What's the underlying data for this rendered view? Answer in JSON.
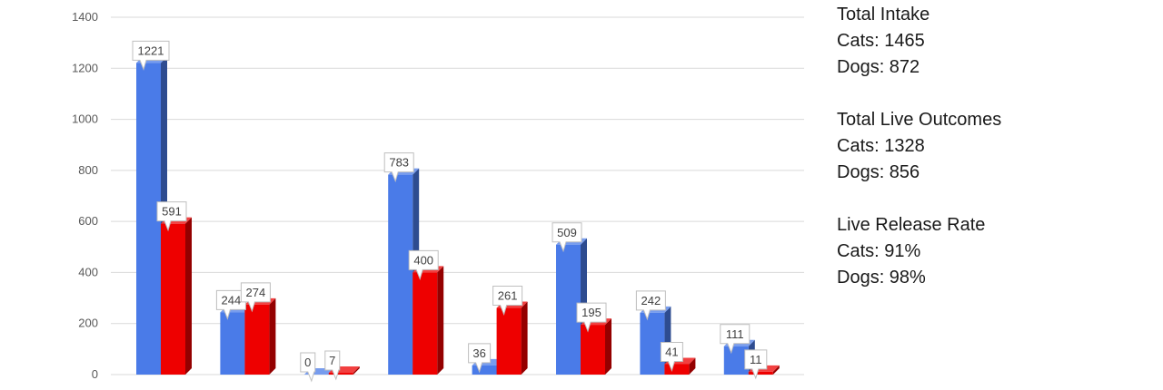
{
  "chart_data": {
    "type": "bar",
    "categories": [
      "",
      "",
      "",
      "",
      "",
      "",
      "",
      ""
    ],
    "series": [
      {
        "values": [
          1221,
          244,
          0,
          783,
          36,
          509,
          242,
          111
        ],
        "color": "#4a7be8"
      },
      {
        "values": [
          591,
          274,
          7,
          400,
          261,
          195,
          41,
          11
        ],
        "color": "#ee0000"
      }
    ],
    "ylim": [
      0,
      1400
    ],
    "yticks": [
      "0",
      "200",
      "400",
      "600",
      "800",
      "1000",
      "1200",
      "1400"
    ],
    "grid": true,
    "style": "3d-column with callout data labels"
  },
  "summary": {
    "intake": {
      "title": "Total Intake",
      "cats": "Cats: 1465",
      "dogs": "Dogs: 872"
    },
    "outcomes": {
      "title": "Total Live Outcomes",
      "cats": "Cats: 1328",
      "dogs": "Dogs: 856"
    },
    "release": {
      "title": "Live Release Rate",
      "cats": "Cats: 91%",
      "dogs": "Dogs: 98%"
    }
  }
}
